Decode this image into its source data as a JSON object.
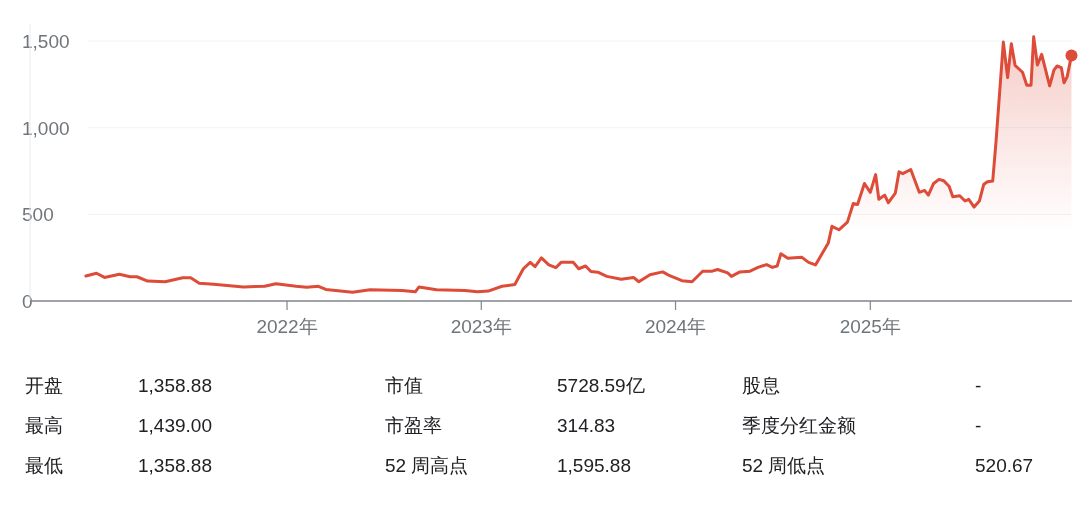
{
  "chart_data": [
    {
      "type": "area",
      "grid": "y",
      "xlim": [
        "2020-09-05",
        "2026-01-15"
      ],
      "ylim": [
        0,
        1600
      ],
      "xticks": [
        {
          "value": "2022-01-01",
          "label": "2022年"
        },
        {
          "value": "2023-01-01",
          "label": "2023年"
        },
        {
          "value": "2024-01-01",
          "label": "2024年"
        },
        {
          "value": "2025-01-01",
          "label": "2025年"
        }
      ],
      "yticks": [
        0,
        500,
        {
          "value": 1000,
          "label": "1,000"
        },
        {
          "value": 1500,
          "label": "1,500"
        }
      ],
      "series": [
        {
          "type": "area",
          "color": "#dd4b39",
          "x": [
            "2020-12-19",
            "2021-01-08",
            "2021-01-23",
            "2021-02-20",
            "2021-03-12",
            "2021-03-25",
            "2021-04-14",
            "2021-05-17",
            "2021-06-19",
            "2021-07-04",
            "2021-07-20",
            "2021-08-16",
            "2021-10-11",
            "2021-11-20",
            "2021-12-11",
            "2022-01-18",
            "2022-02-07",
            "2022-03-01",
            "2022-03-15",
            "2022-05-04",
            "2022-06-06",
            "2022-08-05",
            "2022-08-30",
            "2022-09-06",
            "2022-10-09",
            "2022-12-01",
            "2022-12-25",
            "2023-01-14",
            "2023-02-09",
            "2023-03-05",
            "2023-03-21",
            "2023-04-03",
            "2023-04-12",
            "2023-04-24",
            "2023-05-08",
            "2023-05-21",
            "2023-05-31",
            "2023-06-23",
            "2023-07-03",
            "2023-07-16",
            "2023-07-26",
            "2023-08-08",
            "2023-08-25",
            "2023-09-21",
            "2023-10-14",
            "2023-10-24",
            "2023-11-14",
            "2023-12-08",
            "2023-12-21",
            "2024-01-13",
            "2024-02-01",
            "2024-02-21",
            "2024-03-10",
            "2024-03-20",
            "2024-04-08",
            "2024-04-15",
            "2024-05-01",
            "2024-05-20",
            "2024-06-04",
            "2024-06-20",
            "2024-07-01",
            "2024-07-10",
            "2024-07-17",
            "2024-07-30",
            "2024-08-25",
            "2024-09-07",
            "2024-09-20",
            "2024-10-14",
            "2024-10-21",
            "2024-11-03",
            "2024-11-19",
            "2024-11-30",
            "2024-12-08",
            "2024-12-21",
            "2025-01-01",
            "2025-01-11",
            "2025-01-17",
            "2025-01-28",
            "2025-02-04",
            "2025-02-17",
            "2025-02-24",
            "2025-03-03",
            "2025-03-18",
            "2025-04-03",
            "2025-04-13",
            "2025-04-20",
            "2025-04-30",
            "2025-05-10",
            "2025-05-19",
            "2025-05-29",
            "2025-06-05",
            "2025-06-18",
            "2025-06-28",
            "2025-07-05",
            "2025-07-15",
            "2025-07-25",
            "2025-08-02",
            "2025-08-09",
            "2025-08-19",
            "2025-08-25",
            "2025-09-08",
            "2025-09-16",
            "2025-09-23",
            "2025-09-30",
            "2025-10-14",
            "2025-10-22",
            "2025-10-30",
            "2025-11-04",
            "2025-11-11",
            "2025-11-19",
            "2025-12-04",
            "2025-12-12",
            "2025-12-18",
            "2025-12-26",
            "2025-12-31",
            "2026-01-06",
            "2026-01-14"
          ],
          "values": [
            144,
            160,
            136,
            154,
            140,
            140,
            115,
            111,
            134,
            134,
            103,
            97,
            81,
            85,
            99,
            85,
            79,
            85,
            67,
            51,
            65,
            61,
            53,
            81,
            65,
            61,
            53,
            57,
            85,
            95,
            186,
            223,
            198,
            249,
            208,
            192,
            223,
            223,
            186,
            202,
            170,
            166,
            142,
            125,
            136,
            111,
            152,
            168,
            146,
            117,
            111,
            172,
            172,
            182,
            162,
            142,
            168,
            172,
            194,
            210,
            194,
            202,
            273,
            247,
            253,
            223,
            208,
            334,
            431,
            411,
            455,
            563,
            557,
            678,
            627,
            729,
            587,
            611,
            567,
            623,
            745,
            735,
            759,
            627,
            638,
            611,
            678,
            702,
            694,
            662,
            601,
            607,
            577,
            587,
            542,
            577,
            672,
            688,
            692,
            911,
            1494,
            1289,
            1484,
            1360,
            1320,
            1245,
            1245,
            1524,
            1362,
            1423,
            1241,
            1332,
            1356,
            1346,
            1259,
            1295,
            1417
          ]
        },
        {
          "type": "scatter",
          "color": "#dd4b39",
          "marker": "circle",
          "x": [
            "2026-01-14"
          ],
          "values": [
            1417
          ]
        }
      ]
    },
    {
      "type": "other",
      "annotations": [
        "开盘",
        "1,358.88",
        "市值",
        "5728.59亿",
        "股息",
        "-",
        "最高",
        "1,439.00",
        "市盈率",
        "314.83",
        "季度分红金额",
        "-",
        "最低",
        "1,358.88",
        "52 周高点",
        "1,595.88",
        "52 周低点",
        "520.67"
      ]
    }
  ]
}
